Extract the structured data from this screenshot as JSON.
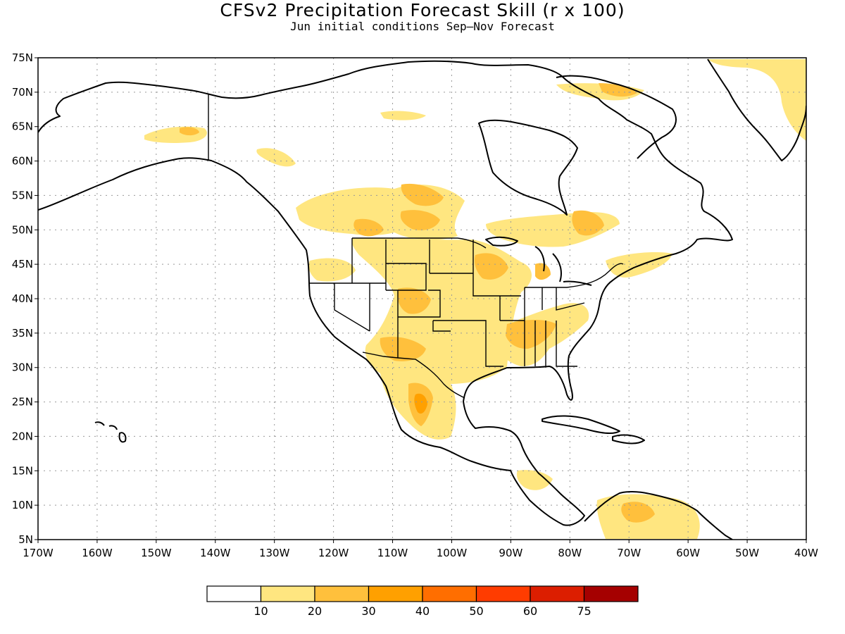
{
  "title": "CFSv2 Precipitation Forecast Skill (r x 100)",
  "subtitle": "Jun initial conditions  Sep–Nov Forecast",
  "map": {
    "lon_range": [
      -170,
      -40
    ],
    "lat_range": [
      5,
      75
    ],
    "lat_ticks": [
      75,
      70,
      65,
      60,
      55,
      50,
      45,
      40,
      35,
      30,
      25,
      20,
      15,
      10,
      5
    ],
    "lat_labels": [
      "75N",
      "70N",
      "65N",
      "60N",
      "55N",
      "50N",
      "45N",
      "40N",
      "35N",
      "30N",
      "25N",
      "20N",
      "15N",
      "10N",
      "5N"
    ],
    "lon_ticks": [
      -170,
      -160,
      -150,
      -140,
      -130,
      -120,
      -110,
      -100,
      -90,
      -80,
      -70,
      -60,
      -50,
      -40
    ],
    "lon_labels": [
      "170W",
      "160W",
      "150W",
      "140W",
      "130W",
      "120W",
      "110W",
      "100W",
      "90W",
      "80W",
      "70W",
      "60W",
      "50W",
      "40W"
    ],
    "grid": true
  },
  "colorbar": {
    "colors": [
      "#ffffff",
      "#ffe680",
      "#ffc03c",
      "#ffa000",
      "#ff6e00",
      "#ff3c00",
      "#dc1e00",
      "#a50000"
    ],
    "labels": [
      "10",
      "20",
      "30",
      "40",
      "50",
      "60",
      "75"
    ]
  }
}
